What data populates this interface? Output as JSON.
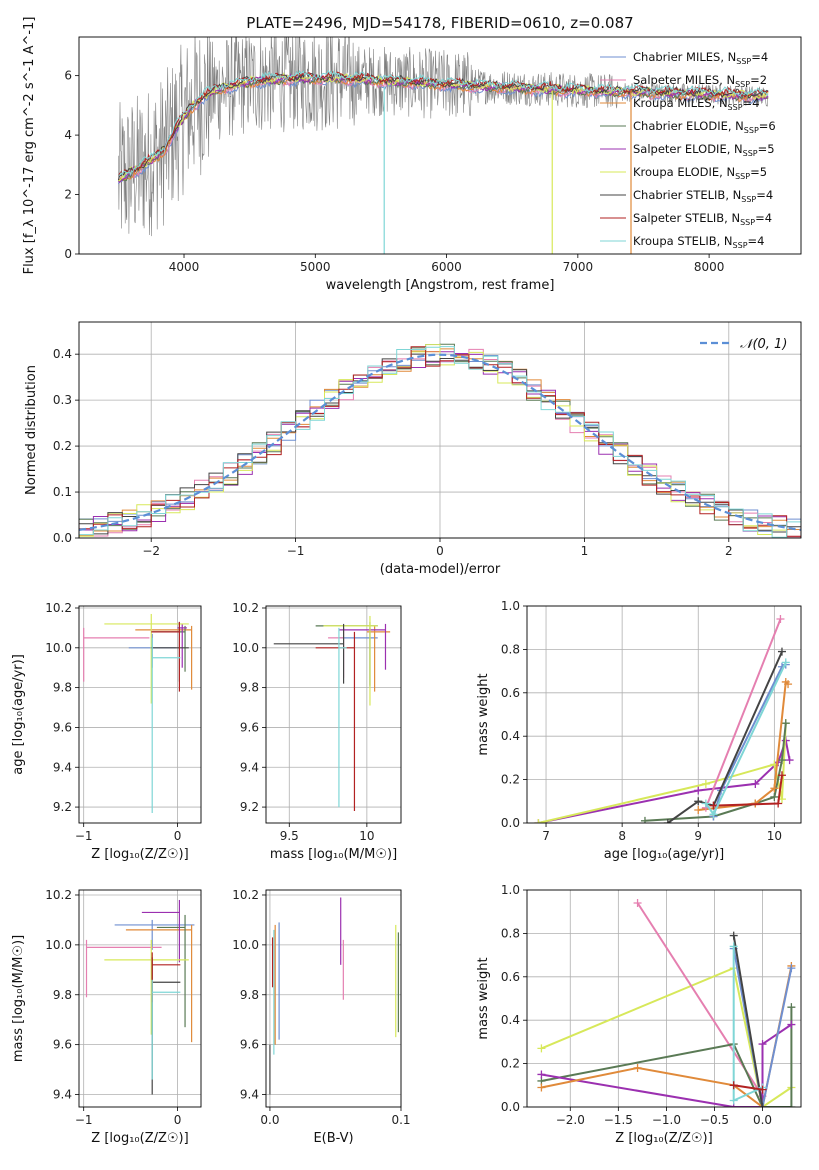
{
  "title": "PLATE=2496, MJD=54178, FIBERID=0610, z=0.087",
  "colors": {
    "Chabrier MILES": "#6f8fd0",
    "Salpeter MILES": "#e57fb0",
    "Kroupa MILES": "#e08a3a",
    "Chabrier ELODIE": "#5a7a55",
    "Salpeter ELODIE": "#9b30b0",
    "Kroupa ELODIE": "#d7e85a",
    "Chabrier STELIB": "#444444",
    "Salpeter STELIB": "#b22222",
    "Kroupa STELIB": "#7fd6d6",
    "gaussian": "#5b8fd6",
    "grid": "#b0b0b0"
  },
  "chart_data": [
    {
      "id": "spectrum",
      "type": "line",
      "title": "PLATE=2496, MJD=54178, FIBERID=0610, z=0.087",
      "xlabel": "wavelength [Angstrom, rest frame]",
      "ylabel": "Flux [f_λ 10^-17 erg cm^-2 s^-1 A^-1]",
      "xlim": [
        3200,
        8700
      ],
      "ylim": [
        0,
        7.3
      ],
      "xticks": [
        "4000",
        "5000",
        "6000",
        "7000",
        "8000"
      ],
      "yticks": [
        "0",
        "2",
        "4",
        "6"
      ],
      "grid": false,
      "legend_position": "right",
      "legend": [
        {
          "label": "Chabrier MILES, N",
          "sub": "SSP",
          "tail": "=4"
        },
        {
          "label": "Salpeter MILES, N",
          "sub": "SSP",
          "tail": "=2"
        },
        {
          "label": "Kroupa MILES, N",
          "sub": "SSP",
          "tail": "=4"
        },
        {
          "label": "Chabrier ELODIE, N",
          "sub": "SSP",
          "tail": "=6"
        },
        {
          "label": "Salpeter ELODIE, N",
          "sub": "SSP",
          "tail": "=5"
        },
        {
          "label": "Kroupa ELODIE, N",
          "sub": "SSP",
          "tail": "=5"
        },
        {
          "label": "Chabrier STELIB, N",
          "sub": "SSP",
          "tail": "=4"
        },
        {
          "label": "Salpeter STELIB, N",
          "sub": "SSP",
          "tail": "=4"
        },
        {
          "label": "Kroupa STELIB, N",
          "sub": "SSP",
          "tail": "=4"
        }
      ],
      "data_range": [
        3500,
        8450
      ],
      "continuum": {
        "wavelength": [
          3500,
          3700,
          3850,
          3950,
          4050,
          4150,
          4300,
          4500,
          4800,
          5200,
          5600,
          6000,
          6500,
          7000,
          7400,
          7800,
          8200,
          8450
        ],
        "flux": [
          2.5,
          3.0,
          3.5,
          4.3,
          4.9,
          5.3,
          5.6,
          5.8,
          5.9,
          5.9,
          5.8,
          5.7,
          5.6,
          5.5,
          5.45,
          5.4,
          5.35,
          5.3
        ]
      }
    },
    {
      "id": "residuals",
      "type": "line",
      "xlabel": "(data-model)/error",
      "ylabel": "Normed distribution",
      "xlim": [
        -2.5,
        2.5
      ],
      "ylim": [
        0,
        0.47
      ],
      "xticks": [
        "−2",
        "−1",
        "0",
        "1",
        "2"
      ],
      "yticks": [
        "0.0",
        "0.1",
        "0.2",
        "0.3",
        "0.4"
      ],
      "grid": true,
      "legend_position": "top-right",
      "legend_label": "𝒩(0, 1)",
      "bin_width": 0.1
    },
    {
      "id": "age_vs_Z",
      "type": "scatter",
      "xlabel": "Z [log₁₀(Z/Z☉)]",
      "ylabel": "age  [log₁₀(age/yr)]",
      "xlim": [
        -1.05,
        0.25
      ],
      "ylim": [
        9.12,
        10.21
      ],
      "xticks": [
        -1,
        0
      ],
      "yticks": [
        9.2,
        9.4,
        9.6,
        9.8,
        10.0,
        10.2
      ],
      "points": [
        {
          "model": "Chabrier MILES",
          "x": -0.27,
          "xerr": [
            0.25,
            0.25
          ],
          "y": 10.0,
          "yerr": [
            0.1,
            0.07
          ]
        },
        {
          "model": "Salpeter MILES",
          "x": -1.0,
          "xerr": [
            0.0,
            0.7
          ],
          "y": 10.05,
          "yerr": [
            0.22,
            0.05
          ]
        },
        {
          "model": "Kroupa MILES",
          "x": 0.15,
          "xerr": [
            0.6,
            0.0
          ],
          "y": 10.09,
          "yerr": [
            0.3,
            0.02
          ]
        },
        {
          "model": "Chabrier ELODIE",
          "x": 0.08,
          "xerr": [
            0.35,
            0.0
          ],
          "y": 10.08,
          "yerr": [
            0.2,
            0.03
          ]
        },
        {
          "model": "Salpeter ELODIE",
          "x": 0.05,
          "xerr": [
            0.05,
            0.05
          ],
          "y": 10.1,
          "yerr": [
            0.2,
            0.02
          ]
        },
        {
          "model": "Kroupa ELODIE",
          "x": -0.28,
          "xerr": [
            0.5,
            0.4
          ],
          "y": 10.12,
          "yerr": [
            0.4,
            0.05
          ]
        },
        {
          "model": "Chabrier STELIB",
          "x": 0.02,
          "xerr": [
            0.3,
            0.1
          ],
          "y": 10.0,
          "yerr": [
            0.17,
            0.13
          ]
        },
        {
          "model": "Salpeter STELIB",
          "x": 0.02,
          "xerr": [
            0.3,
            0.0
          ],
          "y": 10.08,
          "yerr": [
            0.3,
            0.05
          ]
        },
        {
          "model": "Kroupa STELIB",
          "x": -0.27,
          "xerr": [
            0.0,
            0.3
          ],
          "y": 9.95,
          "yerr": [
            0.78,
            0.1
          ]
        }
      ]
    },
    {
      "id": "age_vs_mass",
      "type": "scatter",
      "xlabel": "mass [log₁₀(M/M☉)]",
      "ylabel": "",
      "xlim": [
        9.35,
        10.22
      ],
      "ylim": [
        9.12,
        10.21
      ],
      "xticks": [
        9.5,
        10.0
      ],
      "yticks": [
        9.2,
        9.4,
        9.6,
        9.8,
        10.0,
        10.2
      ],
      "points": [
        {
          "model": "Chabrier MILES",
          "x": 10.02,
          "xerr": [
            0.2,
            0.05
          ],
          "y": 10.05,
          "yerr": [
            0.25,
            0.05
          ]
        },
        {
          "model": "Salpeter MILES",
          "x": 9.85,
          "xerr": [
            0.1,
            0.0
          ],
          "y": 10.05,
          "yerr": [
            0.2,
            0.05
          ]
        },
        {
          "model": "Kroupa MILES",
          "x": 10.05,
          "xerr": [
            0.05,
            0.1
          ],
          "y": 10.08,
          "yerr": [
            0.3,
            0.03
          ]
        },
        {
          "model": "Chabrier ELODIE",
          "x": 10.02,
          "xerr": [
            0.35,
            0.05
          ],
          "y": 10.11,
          "yerr": [
            0.3,
            0.02
          ]
        },
        {
          "model": "Salpeter ELODIE",
          "x": 10.12,
          "xerr": [
            0.3,
            0.0
          ],
          "y": 10.09,
          "yerr": [
            0.2,
            0.03
          ]
        },
        {
          "model": "Kroupa ELODIE",
          "x": 10.02,
          "xerr": [
            0.3,
            0.05
          ],
          "y": 10.11,
          "yerr": [
            0.4,
            0.05
          ]
        },
        {
          "model": "Chabrier STELIB",
          "x": 9.85,
          "xerr": [
            0.45,
            0.0
          ],
          "y": 10.02,
          "yerr": [
            0.2,
            0.1
          ]
        },
        {
          "model": "Salpeter STELIB",
          "x": 9.92,
          "xerr": [
            0.25,
            0.0
          ],
          "y": 10.0,
          "yerr": [
            0.82,
            0.08
          ]
        },
        {
          "model": "Kroupa STELIB",
          "x": 9.82,
          "xerr": [
            0.0,
            0.05
          ],
          "y": 10.0,
          "yerr": [
            0.8,
            0.1
          ]
        }
      ]
    },
    {
      "id": "weight_vs_age",
      "type": "line",
      "xlabel": "age  [log₁₀(age/yr)]",
      "ylabel": "mass weight",
      "xlim": [
        6.75,
        10.35
      ],
      "ylim": [
        0,
        1.0
      ],
      "xticks": [
        7,
        8,
        9,
        10
      ],
      "yticks": [
        "0.0",
        "0.2",
        "0.4",
        "0.6",
        "0.8",
        "1.0"
      ],
      "series": [
        {
          "model": "Salpeter ELODIE",
          "x": [
            6.9,
            9.0,
            9.75,
            10.05,
            10.15,
            10.2
          ],
          "y": [
            0.0,
            0.15,
            0.18,
            0.28,
            0.38,
            0.29
          ]
        },
        {
          "model": "Kroupa ELODIE",
          "x": [
            6.9,
            9.1,
            10.0,
            10.1,
            10.15
          ],
          "y": [
            0.0,
            0.18,
            0.27,
            0.11,
            0.46
          ]
        },
        {
          "model": "Chabrier ELODIE",
          "x": [
            8.3,
            9.2,
            9.75,
            10.0,
            10.1,
            10.15
          ],
          "y": [
            0.01,
            0.03,
            0.09,
            0.12,
            0.29,
            0.46
          ]
        },
        {
          "model": "Kroupa MILES",
          "x": [
            9.0,
            9.75,
            10.0,
            10.15,
            10.18
          ],
          "y": [
            0.06,
            0.09,
            0.16,
            0.65,
            0.64
          ]
        },
        {
          "model": "Chabrier MILES",
          "x": [
            9.2,
            9.3,
            10.1,
            10.15
          ],
          "y": [
            0.03,
            0.15,
            0.72,
            0.73
          ]
        },
        {
          "model": "Salpeter MILES",
          "x": [
            9.1,
            10.08
          ],
          "y": [
            0.07,
            0.94
          ]
        },
        {
          "model": "Chabrier STELIB",
          "x": [
            8.6,
            9.0,
            9.2,
            10.1
          ],
          "y": [
            0.0,
            0.1,
            0.08,
            0.79
          ]
        },
        {
          "model": "Salpeter STELIB",
          "x": [
            9.2,
            10.05,
            10.1
          ],
          "y": [
            0.08,
            0.09,
            0.22
          ]
        },
        {
          "model": "Kroupa STELIB",
          "x": [
            9.1,
            9.2,
            10.15
          ],
          "y": [
            0.09,
            0.04,
            0.74
          ]
        }
      ]
    },
    {
      "id": "mass_vs_Z",
      "type": "scatter",
      "xlabel": "Z [log₁₀(Z/Z☉)]",
      "ylabel": "mass [log₁₀(M/M☉)]",
      "xlim": [
        -1.05,
        0.25
      ],
      "ylim": [
        9.35,
        10.22
      ],
      "xticks": [
        -1,
        0
      ],
      "yticks": [
        9.4,
        9.6,
        9.8,
        10.0,
        10.2
      ],
      "points": [
        {
          "model": "Chabrier MILES",
          "x": -0.27,
          "xerr": [
            0.4,
            0.45
          ],
          "y": 10.08,
          "yerr": [
            0.1,
            0.02
          ]
        },
        {
          "model": "Salpeter MILES",
          "x": -0.97,
          "xerr": [
            0.0,
            0.8
          ],
          "y": 9.99,
          "yerr": [
            0.2,
            0.03
          ]
        },
        {
          "model": "Kroupa MILES",
          "x": 0.15,
          "xerr": [
            0.7,
            0.0
          ],
          "y": 10.06,
          "yerr": [
            0.45,
            0.02
          ]
        },
        {
          "model": "Chabrier ELODIE",
          "x": 0.08,
          "xerr": [
            0.3,
            0.0
          ],
          "y": 10.07,
          "yerr": [
            0.4,
            0.05
          ]
        },
        {
          "model": "Salpeter ELODIE",
          "x": 0.02,
          "xerr": [
            0.4,
            0.0
          ],
          "y": 10.13,
          "yerr": [
            0.2,
            0.05
          ]
        },
        {
          "model": "Kroupa ELODIE",
          "x": -0.28,
          "xerr": [
            0.5,
            0.4
          ],
          "y": 9.94,
          "yerr": [
            0.3,
            0.08
          ]
        },
        {
          "model": "Chabrier STELIB",
          "x": -0.27,
          "xerr": [
            0.0,
            0.3
          ],
          "y": 9.85,
          "yerr": [
            0.45,
            0.1
          ]
        },
        {
          "model": "Salpeter STELIB",
          "x": -0.27,
          "xerr": [
            0.0,
            0.3
          ],
          "y": 9.92,
          "yerr": [
            0.15,
            0.05
          ]
        },
        {
          "model": "Kroupa STELIB",
          "x": -0.27,
          "xerr": [
            0.0,
            0.3
          ],
          "y": 9.81,
          "yerr": [
            0.35,
            0.05
          ]
        }
      ]
    },
    {
      "id": "mass_vs_EBV",
      "type": "scatter",
      "xlabel": "E(B-V)",
      "ylabel": "",
      "xlim": [
        -0.003,
        0.1
      ],
      "ylim": [
        9.35,
        10.22
      ],
      "xticks": [
        "0.0",
        "0.1"
      ],
      "yticks": [
        9.4,
        9.6,
        9.8,
        10.0,
        10.2
      ],
      "points": [
        {
          "model": "Chabrier MILES",
          "x": 0.007,
          "y": 9.85,
          "yerr": [
            0.23,
            0.24
          ]
        },
        {
          "model": "Salpeter MILES",
          "x": 0.056,
          "y": 9.9,
          "yerr": [
            0.12,
            0.12
          ]
        },
        {
          "model": "Kroupa MILES",
          "x": 0.004,
          "y": 9.85,
          "yerr": [
            0.25,
            0.23
          ]
        },
        {
          "model": "Chabrier ELODIE",
          "x": 0.098,
          "y": 9.85,
          "yerr": [
            0.2,
            0.2
          ]
        },
        {
          "model": "Salpeter ELODIE",
          "x": 0.054,
          "y": 10.05,
          "yerr": [
            0.13,
            0.14
          ]
        },
        {
          "model": "Kroupa ELODIE",
          "x": 0.096,
          "y": 9.88,
          "yerr": [
            0.25,
            0.2
          ]
        },
        {
          "model": "Chabrier STELIB",
          "x": 0.0,
          "y": 9.5,
          "yerr": [
            0.1,
            0.1
          ]
        },
        {
          "model": "Salpeter STELIB",
          "x": 0.002,
          "y": 9.93,
          "yerr": [
            0.1,
            0.1
          ]
        },
        {
          "model": "Kroupa STELIB",
          "x": 0.003,
          "y": 9.81,
          "yerr": [
            0.25,
            0.25
          ]
        }
      ]
    },
    {
      "id": "weight_vs_Z",
      "type": "line",
      "xlabel": "Z [log₁₀(Z/Z☉)]",
      "ylabel": "mass weight",
      "xlim": [
        -2.45,
        0.4
      ],
      "ylim": [
        0,
        1.0
      ],
      "xticks": [
        "−2.0",
        "−1.5",
        "−1.0",
        "−0.5",
        "0.0"
      ],
      "yticks": [
        "0.0",
        "0.2",
        "0.4",
        "0.6",
        "0.8",
        "1.0"
      ],
      "series": [
        {
          "model": "Kroupa ELODIE",
          "x": [
            -2.3,
            -0.3,
            0.0,
            0.3
          ],
          "y": [
            0.27,
            0.64,
            0.0,
            0.09
          ]
        },
        {
          "model": "Salpeter MILES",
          "x": [
            -1.3,
            0.0
          ],
          "y": [
            0.94,
            0.05
          ]
        },
        {
          "model": "Chabrier ELODIE",
          "x": [
            -2.3,
            -0.3,
            0.0,
            0.3,
            0.3
          ],
          "y": [
            0.12,
            0.29,
            0.0,
            0.0,
            0.46
          ]
        },
        {
          "model": "Salpeter ELODIE",
          "x": [
            -2.3,
            -0.3,
            0.0,
            0.0,
            0.3
          ],
          "y": [
            0.15,
            0.0,
            0.0,
            0.29,
            0.38
          ]
        },
        {
          "model": "Kroupa MILES",
          "x": [
            -2.3,
            -1.3,
            -0.3,
            0.0,
            0.3
          ],
          "y": [
            0.09,
            0.18,
            0.1,
            0.0,
            0.65
          ]
        },
        {
          "model": "Chabrier MILES",
          "x": [
            -0.3,
            0.0,
            0.3
          ],
          "y": [
            0.73,
            0.0,
            0.64
          ]
        },
        {
          "model": "Chabrier STELIB",
          "x": [
            -0.3,
            0.0
          ],
          "y": [
            0.79,
            0.0
          ]
        },
        {
          "model": "Kroupa STELIB",
          "x": [
            -0.3,
            -0.3,
            0.0
          ],
          "y": [
            0.74,
            0.03,
            0.09
          ]
        },
        {
          "model": "Salpeter STELIB",
          "x": [
            -0.3,
            0.0
          ],
          "y": [
            0.1,
            0.08
          ]
        }
      ]
    }
  ],
  "legend_order": [
    "Chabrier MILES",
    "Salpeter MILES",
    "Kroupa MILES",
    "Chabrier ELODIE",
    "Salpeter ELODIE",
    "Kroupa ELODIE",
    "Chabrier STELIB",
    "Salpeter STELIB",
    "Kroupa STELIB"
  ]
}
